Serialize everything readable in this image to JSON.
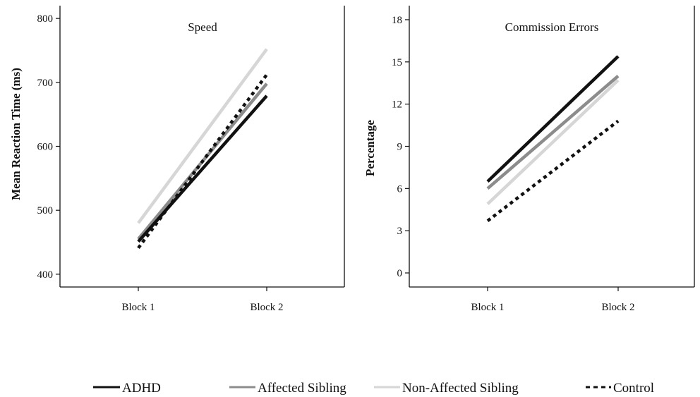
{
  "chart_data": [
    {
      "type": "line",
      "title": "Speed",
      "xlabel": "",
      "ylabel": "Mean Reaction Time (ms)",
      "categories": [
        "Block 1",
        "Block 2"
      ],
      "ylim": [
        380,
        820
      ],
      "yticks": [
        400,
        500,
        600,
        700,
        800
      ],
      "series": [
        {
          "name": "ADHD",
          "values": [
            451,
            679
          ]
        },
        {
          "name": "Affected Sibling",
          "values": [
            455,
            698
          ]
        },
        {
          "name": "Non-Affected Sibling",
          "values": [
            480,
            752
          ]
        },
        {
          "name": "Control",
          "values": [
            441,
            712
          ]
        }
      ]
    },
    {
      "type": "line",
      "title": "Commission Errors",
      "xlabel": "",
      "ylabel": "Percentage",
      "categories": [
        "Block 1",
        "Block 2"
      ],
      "ylim": [
        -1,
        19
      ],
      "yticks": [
        0,
        3,
        6,
        9,
        12,
        15,
        18
      ],
      "series": [
        {
          "name": "ADHD",
          "values": [
            6.5,
            15.4
          ]
        },
        {
          "name": "Affected Sibling",
          "values": [
            6.0,
            14.0
          ]
        },
        {
          "name": "Non-Affected Sibling",
          "values": [
            4.9,
            13.7
          ]
        },
        {
          "name": "Control",
          "values": [
            3.7,
            10.8
          ]
        }
      ]
    }
  ],
  "legend": {
    "placement": "bottom",
    "items": [
      {
        "label": "ADHD",
        "color": "#111111",
        "style": "solid"
      },
      {
        "label": "Affected Sibling",
        "color": "#8c8c8c",
        "style": "solid"
      },
      {
        "label": "Non-Affected Sibling",
        "color": "#d6d6d6",
        "style": "solid"
      },
      {
        "label": "Control",
        "color": "#111111",
        "style": "dashed"
      }
    ]
  },
  "series_styles": [
    {
      "color": "#111111",
      "dashed": false
    },
    {
      "color": "#8c8c8c",
      "dashed": false
    },
    {
      "color": "#d6d6d6",
      "dashed": false
    },
    {
      "color": "#111111",
      "dashed": true
    }
  ]
}
